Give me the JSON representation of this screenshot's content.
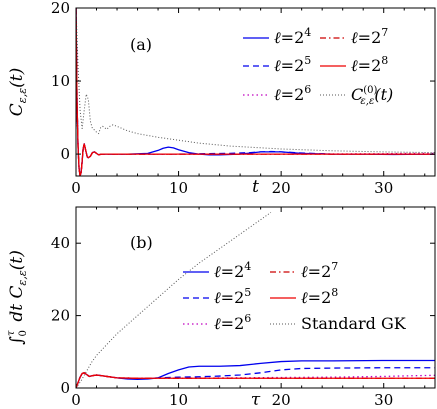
{
  "chart_data": [
    {
      "panel_label": "(a)",
      "type": "line",
      "xlabel": "t",
      "ylabel": "C_{ε,ε}(t)",
      "xlim": [
        0,
        35
      ],
      "ylim": [
        -3,
        20
      ],
      "xticks": [
        0,
        10,
        20,
        30
      ],
      "yticks": [
        0,
        10,
        20
      ],
      "grid": false,
      "legend_position": "top-right",
      "series": [
        {
          "name": "ℓ=2⁴",
          "color": "#0000ee",
          "dash": "solid",
          "x": [
            0,
            0.05,
            0.1,
            0.2,
            0.3,
            0.4,
            0.5,
            0.6,
            0.7,
            0.8,
            0.9,
            1,
            1.1,
            1.2,
            1.4,
            1.6,
            1.8,
            2,
            2.2,
            2.5,
            3,
            3.5,
            4,
            5,
            6,
            7,
            8,
            8.5,
            9,
            9.5,
            10,
            11,
            12,
            13,
            14,
            16,
            18,
            20,
            22,
            25,
            28,
            31,
            35
          ],
          "y": [
            20,
            14,
            7,
            1,
            -2,
            -3,
            -2.5,
            -1,
            0.8,
            1.4,
            0.8,
            0.2,
            -0.4,
            -0.5,
            -0.3,
            0.2,
            0.3,
            0.1,
            -0.1,
            0,
            0,
            0,
            0,
            0,
            0.05,
            0.1,
            0.5,
            0.8,
            0.95,
            0.85,
            0.6,
            0.2,
            0,
            -0.1,
            -0.1,
            0,
            0.3,
            0.3,
            0.1,
            0,
            0,
            -0.05,
            0
          ]
        },
        {
          "name": "ℓ=2⁵",
          "color": "#0000ee",
          "dash": "dashed",
          "x": [
            0,
            0.05,
            0.1,
            0.2,
            0.3,
            0.4,
            0.5,
            0.6,
            0.7,
            0.8,
            0.9,
            1,
            1.1,
            1.2,
            1.4,
            1.6,
            1.8,
            2,
            2.2,
            2.5,
            3,
            5,
            10,
            15,
            17,
            18,
            19,
            20,
            22,
            25,
            30,
            35
          ],
          "y": [
            20,
            14,
            7,
            1,
            -2,
            -3,
            -2.5,
            -1,
            0.8,
            1.4,
            0.8,
            0.2,
            -0.4,
            -0.5,
            -0.3,
            0.2,
            0.3,
            0.1,
            -0.1,
            0,
            0,
            0,
            0,
            0.1,
            0.2,
            0.3,
            0.35,
            0.3,
            0.15,
            0,
            0,
            0
          ]
        },
        {
          "name": "ℓ=2⁶",
          "color": "#c000c0",
          "dash": "dotted",
          "x": [
            0,
            0.05,
            0.1,
            0.2,
            0.3,
            0.4,
            0.5,
            0.6,
            0.7,
            0.8,
            0.9,
            1,
            1.1,
            1.2,
            1.4,
            1.6,
            1.8,
            2,
            2.2,
            2.5,
            3,
            5,
            10,
            20,
            30,
            33,
            35
          ],
          "y": [
            20,
            14,
            7,
            1,
            -2,
            -3,
            -2.5,
            -1,
            0.8,
            1.4,
            0.8,
            0.2,
            -0.4,
            -0.5,
            -0.3,
            0.2,
            0.3,
            0.1,
            -0.1,
            0,
            0,
            0,
            0,
            0,
            0.05,
            0.1,
            0.1
          ]
        },
        {
          "name": "ℓ=2⁷",
          "color": "#cc0000",
          "dash": "dashdot",
          "x": [
            0,
            0.05,
            0.1,
            0.2,
            0.3,
            0.4,
            0.5,
            0.6,
            0.7,
            0.8,
            0.9,
            1,
            1.1,
            1.2,
            1.4,
            1.6,
            1.8,
            2,
            2.2,
            2.5,
            3,
            5,
            10,
            20,
            35
          ],
          "y": [
            20,
            14,
            7,
            1,
            -2,
            -3,
            -2.5,
            -1,
            0.8,
            1.4,
            0.8,
            0.2,
            -0.4,
            -0.5,
            -0.3,
            0.2,
            0.3,
            0.1,
            -0.1,
            0,
            0,
            0,
            0,
            0,
            0
          ]
        },
        {
          "name": "ℓ=2⁸",
          "color": "#ee0000",
          "dash": "solid",
          "x": [
            0,
            0.05,
            0.1,
            0.2,
            0.3,
            0.4,
            0.5,
            0.6,
            0.7,
            0.8,
            0.9,
            1,
            1.1,
            1.2,
            1.4,
            1.6,
            1.8,
            2,
            2.2,
            2.5,
            3,
            5,
            10,
            20,
            35
          ],
          "y": [
            20,
            14,
            7,
            1,
            -2,
            -3,
            -2.5,
            -1,
            0.8,
            1.4,
            0.8,
            0.2,
            -0.4,
            -0.5,
            -0.3,
            0.2,
            0.3,
            0.1,
            -0.1,
            0,
            0,
            0,
            0,
            0,
            0
          ]
        },
        {
          "name": "C^{(0)}_{ε,ε}(t)",
          "color": "#555555",
          "dash": "finedot",
          "x": [
            0,
            0.2,
            0.4,
            0.6,
            0.8,
            1,
            1.2,
            1.4,
            1.6,
            1.8,
            2,
            2.2,
            2.4,
            2.6,
            2.8,
            3,
            3.3,
            3.6,
            4,
            5,
            6,
            8,
            10,
            12,
            15,
            20,
            25,
            30,
            35
          ],
          "y": [
            20,
            12,
            6,
            3.5,
            6,
            8.2,
            7.5,
            4.5,
            3.5,
            3.3,
            3,
            2.8,
            3.6,
            3.8,
            3.6,
            3.4,
            3.8,
            4,
            3.8,
            3.2,
            2.8,
            2.3,
            1.9,
            1.5,
            1.1,
            0.7,
            0.45,
            0.3,
            0.2
          ]
        }
      ]
    },
    {
      "panel_label": "(b)",
      "type": "line",
      "xlabel": "τ",
      "ylabel": "∫₀^τ dt C_{ε,ε}(t)",
      "xlim": [
        0,
        35
      ],
      "ylim": [
        0,
        50
      ],
      "xticks": [
        0,
        10,
        20,
        30
      ],
      "yticks": [
        0,
        20,
        40
      ],
      "grid": false,
      "legend_position": "middle-right",
      "series": [
        {
          "name": "ℓ=2⁴",
          "color": "#0000ee",
          "dash": "solid",
          "x": [
            0,
            0.2,
            0.4,
            0.6,
            0.8,
            1,
            1.3,
            1.6,
            2,
            2.5,
            3,
            4,
            5,
            6,
            7,
            8,
            9,
            10,
            11,
            12,
            14,
            16,
            18,
            20,
            22,
            25,
            30,
            35
          ],
          "y": [
            0,
            1.5,
            3,
            4,
            4.2,
            3.8,
            3.2,
            3.4,
            3.6,
            3.4,
            3.2,
            2.8,
            2.5,
            2.4,
            2.5,
            2.8,
            4,
            5,
            5.8,
            6,
            6,
            6.2,
            6.8,
            7.3,
            7.5,
            7.5,
            7.6,
            7.6
          ]
        },
        {
          "name": "ℓ=2⁵",
          "color": "#0000ee",
          "dash": "dashed",
          "x": [
            0,
            0.2,
            0.4,
            0.6,
            0.8,
            1,
            1.3,
            1.6,
            2,
            2.5,
            3,
            4,
            5,
            6,
            8,
            10,
            12,
            14,
            16,
            18,
            20,
            22,
            25,
            30,
            35
          ],
          "y": [
            0,
            1.5,
            3,
            4,
            4.2,
            3.8,
            3.2,
            3.4,
            3.6,
            3.4,
            3.2,
            2.8,
            2.6,
            2.6,
            2.8,
            3,
            3.1,
            3.3,
            3.6,
            4.2,
            5,
            5.4,
            5.5,
            5.6,
            5.6
          ]
        },
        {
          "name": "ℓ=2⁶",
          "color": "#c000c0",
          "dash": "dotted",
          "x": [
            0,
            0.2,
            0.4,
            0.6,
            0.8,
            1,
            1.3,
            1.6,
            2,
            2.5,
            3,
            4,
            6,
            8,
            10,
            15,
            20,
            25,
            30,
            33,
            35
          ],
          "y": [
            0,
            1.5,
            3,
            4,
            4.2,
            3.8,
            3.2,
            3.4,
            3.6,
            3.4,
            3.2,
            2.8,
            2.7,
            2.7,
            2.7,
            2.8,
            2.9,
            3,
            3.2,
            3.4,
            3.5
          ]
        },
        {
          "name": "ℓ=2⁷",
          "color": "#cc0000",
          "dash": "dashdot",
          "x": [
            0,
            0.2,
            0.4,
            0.6,
            0.8,
            1,
            1.3,
            1.6,
            2,
            2.5,
            3,
            4,
            6,
            8,
            10,
            15,
            20,
            25,
            30,
            35
          ],
          "y": [
            0,
            1.5,
            3,
            4,
            4.2,
            3.8,
            3.2,
            3.4,
            3.6,
            3.4,
            3.2,
            2.8,
            2.7,
            2.7,
            2.7,
            2.7,
            2.7,
            2.7,
            2.7,
            2.7
          ]
        },
        {
          "name": "ℓ=2⁸",
          "color": "#ee0000",
          "dash": "solid",
          "x": [
            0,
            0.2,
            0.4,
            0.6,
            0.8,
            1,
            1.3,
            1.6,
            2,
            2.5,
            3,
            4,
            6,
            8,
            10,
            15,
            20,
            25,
            30,
            35
          ],
          "y": [
            0,
            1.5,
            3,
            4,
            4.2,
            3.8,
            3.2,
            3.4,
            3.6,
            3.4,
            3.2,
            2.8,
            2.7,
            2.7,
            2.7,
            2.7,
            2.7,
            2.7,
            2.7,
            2.7
          ]
        },
        {
          "name": "Standard GK",
          "color": "#555555",
          "dash": "finedot",
          "x": [
            0,
            0.5,
            1,
            1.5,
            2,
            3,
            4,
            5,
            6,
            8,
            10,
            12,
            14,
            16,
            18,
            19
          ],
          "y": [
            0,
            2,
            4.5,
            7,
            9,
            12,
            15,
            17.5,
            20,
            25,
            30,
            34.5,
            38.5,
            42.5,
            46.5,
            48.5
          ]
        }
      ]
    }
  ]
}
